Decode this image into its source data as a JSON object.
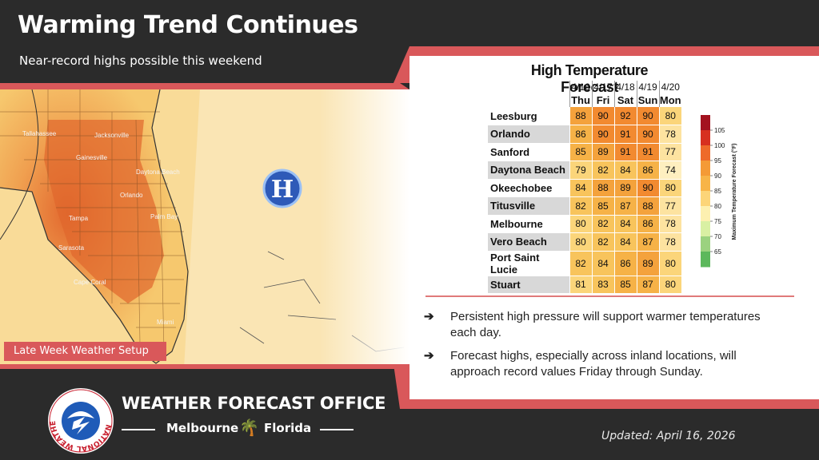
{
  "header": {
    "title": "Warming Trend Continues",
    "subtitle": "Near-record highs possible this weekend"
  },
  "map": {
    "label": "Late Week Weather Setup",
    "pressure_symbol": "H",
    "place_labels": [
      "Tallahassee",
      "Jacksonville",
      "Gainesville",
      "Daytona Beach",
      "Orlando",
      "Tampa",
      "Palm Bay",
      "Sarasota",
      "Cape Coral",
      "Miami"
    ]
  },
  "forecast": {
    "title": "High Temperature Forecast",
    "dates": [
      "4/16",
      "4/17",
      "4/18",
      "4/19",
      "4/20"
    ],
    "days": [
      "Thu",
      "Fri",
      "Sat",
      "Sun",
      "Mon"
    ],
    "rows": [
      {
        "city": "Leesburg",
        "temps": [
          88,
          90,
          92,
          90,
          80
        ]
      },
      {
        "city": "Orlando",
        "temps": [
          86,
          90,
          91,
          90,
          78
        ]
      },
      {
        "city": "Sanford",
        "temps": [
          85,
          89,
          91,
          91,
          77
        ]
      },
      {
        "city": "Daytona Beach",
        "temps": [
          79,
          82,
          84,
          86,
          74
        ]
      },
      {
        "city": "Okeechobee",
        "temps": [
          84,
          88,
          89,
          90,
          80
        ]
      },
      {
        "city": "Titusville",
        "temps": [
          82,
          85,
          87,
          88,
          77
        ]
      },
      {
        "city": "Melbourne",
        "temps": [
          80,
          82,
          84,
          86,
          78
        ]
      },
      {
        "city": "Vero Beach",
        "temps": [
          80,
          82,
          84,
          87,
          78
        ]
      },
      {
        "city": "Port Saint Lucie",
        "temps": [
          82,
          84,
          86,
          89,
          80
        ]
      },
      {
        "city": "Stuart",
        "temps": [
          81,
          83,
          85,
          87,
          80
        ]
      }
    ],
    "legend": {
      "title": "Maximum Temperature Forecast (°F)",
      "ticks": [
        "105",
        "100",
        "95",
        "90",
        "85",
        "80",
        "75",
        "70",
        "65"
      ],
      "colors": [
        "#a3121f",
        "#d7301f",
        "#ee6a2a",
        "#f49a36",
        "#f7b448",
        "#fcd579",
        "#fdf0b0",
        "#d9f0a3",
        "#9bd27f",
        "#5cb85c"
      ]
    }
  },
  "bullets": [
    "Persistent high pressure will support warmer temperatures each day.",
    "Forecast highs, especially across inland locations, will approach record values Friday through Sunday."
  ],
  "footer": {
    "office_title": "WEATHER FORECAST OFFICE",
    "city": "Melbourne",
    "state": "Florida",
    "seal_text": "NATIONAL WEATHER SERVICE",
    "updated": "Updated: April 16, 2026"
  },
  "colors": {
    "background": "#2b2b2b",
    "accent_red": "#d9585a",
    "panel": "#ffffff"
  }
}
